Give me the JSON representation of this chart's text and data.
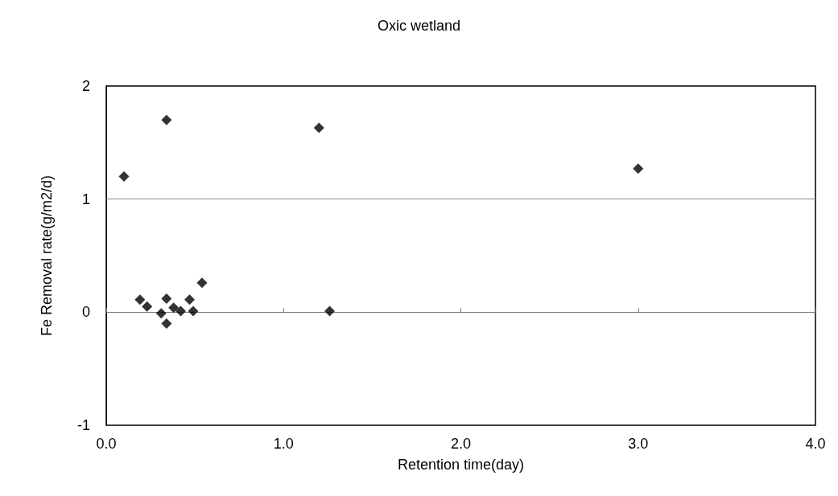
{
  "chart_data": {
    "type": "scatter",
    "title": "Oxic wetland",
    "xlabel": "Retention time(day)",
    "ylabel": "Fe Removal rate(g/m2/d)",
    "x": [
      0.1,
      0.34,
      1.2,
      3.0,
      0.19,
      0.23,
      0.31,
      0.34,
      0.34,
      0.38,
      0.42,
      0.47,
      0.49,
      0.54,
      1.26
    ],
    "values": [
      1.2,
      1.7,
      1.63,
      1.27,
      0.11,
      0.05,
      -0.01,
      -0.1,
      0.12,
      0.04,
      0.01,
      0.11,
      0.01,
      0.26,
      0.01
    ],
    "color": "#000000",
    "marker": "diamond",
    "xlim": [
      0,
      4
    ],
    "xticks": [
      {
        "value": 0,
        "label": "0.0"
      },
      {
        "value": 1,
        "label": "1.0"
      },
      {
        "value": 2,
        "label": "2.0"
      },
      {
        "value": 3,
        "label": "3.0"
      },
      {
        "value": 4,
        "label": "4.0"
      }
    ],
    "ylim": [
      -1,
      2
    ],
    "yticks": [
      -1,
      0,
      1,
      2
    ],
    "ref_lines": [
      {
        "axis": "y",
        "value": 1,
        "color": "#888888"
      }
    ]
  }
}
